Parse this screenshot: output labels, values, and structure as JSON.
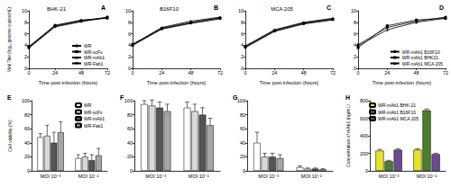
{
  "chart_data": [
    {
      "annotation": "A",
      "type": "line",
      "title": "BHK-21",
      "x_label": "Time post-infection (hours)",
      "y_label": "Viral Titer (log₁₀ genome copies/mL)",
      "x": [
        0,
        24,
        48,
        72
      ],
      "xlim": [
        0,
        72
      ],
      "xticks": [
        0,
        24,
        48,
        72
      ],
      "ylim": [
        0,
        10
      ],
      "yticks": [
        0,
        2,
        4,
        6,
        8,
        10
      ],
      "grid": false,
      "legend": "lower right",
      "series": [
        {
          "name": "WR",
          "color": "#000000",
          "marker": "circle",
          "values": [
            3.8,
            7.5,
            8.3,
            8.8
          ]
        },
        {
          "name": "WR-scFv",
          "color": "#000000",
          "marker": "square",
          "values": [
            3.7,
            7.3,
            8.2,
            8.9
          ]
        },
        {
          "name": "WR-mAb1",
          "color": "#000000",
          "marker": "triangle",
          "values": [
            3.6,
            7.4,
            8.4,
            8.7
          ]
        },
        {
          "name": "WR-Fab1",
          "color": "#000000",
          "marker": "inverted triangle",
          "values": [
            3.5,
            7.2,
            8.1,
            8.8
          ]
        }
      ]
    },
    {
      "annotation": "B",
      "type": "line",
      "title": "B16F10",
      "x_label": "Time post-infection (hours)",
      "x": [
        0,
        24,
        48,
        72
      ],
      "xlim": [
        0,
        72
      ],
      "xticks": [
        0,
        24,
        48,
        72
      ],
      "ylim": [
        0,
        10
      ],
      "yticks": [
        0,
        2,
        4,
        6,
        8,
        10
      ],
      "grid": false,
      "series": [
        {
          "color": "#000000",
          "marker": "circle",
          "values": [
            4.2,
            7.0,
            8.0,
            8.8
          ]
        },
        {
          "color": "#000000",
          "marker": "square",
          "values": [
            4.0,
            6.9,
            7.9,
            8.7
          ]
        },
        {
          "color": "#000000",
          "marker": "triangle",
          "values": [
            4.1,
            7.1,
            8.2,
            8.9
          ]
        },
        {
          "color": "#000000",
          "marker": "inverted triangle",
          "values": [
            4.0,
            6.8,
            7.8,
            8.6
          ]
        }
      ]
    },
    {
      "annotation": "C",
      "type": "line",
      "title": "MCA 205",
      "x_label": "Time post-infection (hours)",
      "x": [
        0,
        24,
        48,
        72
      ],
      "xlim": [
        0,
        72
      ],
      "xticks": [
        0,
        24,
        48,
        72
      ],
      "ylim": [
        0,
        10
      ],
      "yticks": [
        0,
        2,
        4,
        6,
        8,
        10
      ],
      "grid": false,
      "series": [
        {
          "color": "#000000",
          "marker": "circle",
          "values": [
            3.8,
            6.6,
            7.9,
            8.6
          ]
        },
        {
          "color": "#000000",
          "marker": "square",
          "values": [
            3.7,
            6.5,
            7.8,
            8.5
          ]
        },
        {
          "color": "#000000",
          "marker": "triangle",
          "values": [
            3.9,
            6.7,
            8.0,
            8.7
          ]
        },
        {
          "color": "#000000",
          "marker": "inverted triangle",
          "values": [
            3.6,
            6.4,
            7.7,
            8.4
          ]
        }
      ]
    },
    {
      "annotation": "D",
      "type": "line",
      "x_label": "Time post-infection (hours)",
      "x": [
        0,
        24,
        48,
        72
      ],
      "xlim": [
        0,
        72
      ],
      "xticks": [
        0,
        24,
        48,
        72
      ],
      "ylim": [
        0,
        10
      ],
      "yticks": [
        0,
        2,
        4,
        6,
        8,
        10
      ],
      "grid": false,
      "legend": "lower right",
      "series": [
        {
          "name": "WR-mAb1 B16F10",
          "color": "#000000",
          "marker": "circle",
          "values": [
            4.1,
            7.1,
            8.2,
            8.9
          ]
        },
        {
          "name": "WR-mAb1 BHK21",
          "color": "#000000",
          "marker": "square",
          "values": [
            3.6,
            7.4,
            8.4,
            8.7
          ]
        },
        {
          "name": "WR-mAb1 MCA 205",
          "color": "#000000",
          "marker": "triangle",
          "values": [
            3.9,
            6.7,
            8.0,
            8.7
          ]
        }
      ]
    },
    {
      "annotation": "E",
      "type": "bar",
      "y_label": "Cell viability (%)",
      "categories": [
        "MOI 10⁻³",
        "MOI 10⁻²"
      ],
      "ylim": [
        0,
        100
      ],
      "yticks": [
        0,
        20,
        40,
        60,
        80,
        100
      ],
      "grid": false,
      "legend": "upper right",
      "series": [
        {
          "name": "WR",
          "color": "#ffffff",
          "values": [
            48,
            18
          ],
          "errors": [
            5,
            5
          ]
        },
        {
          "name": "WR-scFv",
          "color": "#d9d9d9",
          "values": [
            50,
            20
          ],
          "errors": [
            15,
            5
          ]
        },
        {
          "name": "WR-mAb1",
          "color": "#555555",
          "values": [
            40,
            15
          ],
          "errors": [
            15,
            8
          ]
        },
        {
          "name": "WR-Fab1",
          "color": "#a6a6a6",
          "values": [
            55,
            22
          ],
          "errors": [
            15,
            10
          ]
        }
      ]
    },
    {
      "annotation": "F",
      "type": "bar",
      "categories": [
        "MOI 10⁻³",
        "MOI 10⁻²"
      ],
      "ylim": [
        0,
        100
      ],
      "yticks": [
        0,
        20,
        40,
        60,
        80,
        100
      ],
      "grid": false,
      "series": [
        {
          "color": "#ffffff",
          "values": [
            95,
            90
          ],
          "errors": [
            5,
            8
          ]
        },
        {
          "color": "#d9d9d9",
          "values": [
            93,
            85
          ],
          "errors": [
            8,
            10
          ]
        },
        {
          "color": "#555555",
          "values": [
            90,
            80
          ],
          "errors": [
            8,
            10
          ]
        },
        {
          "color": "#a6a6a6",
          "values": [
            85,
            65
          ],
          "errors": [
            10,
            10
          ]
        }
      ]
    },
    {
      "annotation": "G",
      "type": "bar",
      "categories": [
        "MOI 10⁻³",
        "MOI 10⁻²"
      ],
      "ylim": [
        0,
        100
      ],
      "yticks": [
        0,
        20,
        40,
        60,
        80,
        100
      ],
      "grid": false,
      "series": [
        {
          "color": "#ffffff",
          "values": [
            40,
            5
          ],
          "errors": [
            15,
            2
          ]
        },
        {
          "color": "#d9d9d9",
          "values": [
            20,
            3
          ],
          "errors": [
            5,
            1
          ]
        },
        {
          "color": "#555555",
          "values": [
            20,
            3
          ],
          "errors": [
            5,
            1
          ]
        },
        {
          "color": "#a6a6a6",
          "values": [
            18,
            2
          ],
          "errors": [
            5,
            1
          ]
        }
      ]
    },
    {
      "annotation": "H",
      "type": "bar",
      "y_label": "Concentration of mAb1 (ng/mL)",
      "categories": [
        "MOI 10⁻³",
        "MOI 10⁻²"
      ],
      "ylim": [
        0,
        800
      ],
      "yticks": [
        0,
        200,
        400,
        600,
        800
      ],
      "grid": false,
      "legend": "upper left",
      "series": [
        {
          "name": "WR-mAb1 BHK-21",
          "color": "#e3e32a",
          "values": [
            230,
            240
          ],
          "errors": [
            15,
            10
          ]
        },
        {
          "name": "WR-mAb1 B16F10",
          "color": "#4e7d2c",
          "values": [
            110,
            690
          ],
          "errors": [
            10,
            15
          ]
        },
        {
          "name": "WR-mAb1 MCA 205",
          "color": "#6b4c8c",
          "values": [
            240,
            190
          ],
          "errors": [
            10,
            10
          ]
        }
      ]
    }
  ]
}
